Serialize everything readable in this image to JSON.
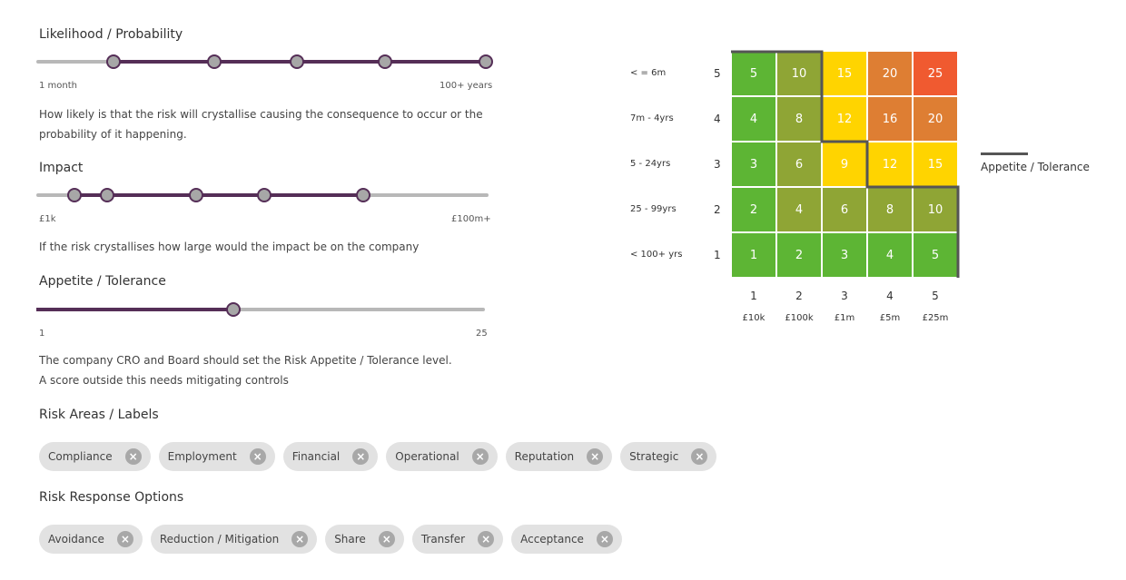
{
  "likelihood": {
    "title": "Likelihood / Probability",
    "min_label": "1 month",
    "max_label": "100+ years",
    "handle_values": [
      0.17,
      0.394,
      0.576,
      0.772,
      0.994
    ],
    "description": "How likely is that the risk will crystallise causing the consequence to occur or the probability of it happening."
  },
  "impact": {
    "title": "Impact",
    "min_label": "£1k",
    "max_label": "£100m+",
    "handle_values": [
      0.084,
      0.156,
      0.353,
      0.504,
      0.723
    ],
    "description": "If the risk crystallises how large would the impact be on the company"
  },
  "appetite": {
    "title": "Appetite / Tolerance",
    "min_label": "1",
    "max_label": "25",
    "handle_value": 0.44,
    "description_line1": "The company CRO and Board should set the Risk Appetite / Tolerance level.",
    "description_line2": "A score outside this needs mitigating controls"
  },
  "risk_areas": {
    "title": "Risk Areas / Labels",
    "chips": [
      "Compliance",
      "Employment",
      "Financial",
      "Operational",
      "Reputation",
      "Strategic"
    ]
  },
  "risk_responses": {
    "title": "Risk Response Options",
    "chips": [
      "Avoidance",
      "Reduction / Mitigation",
      "Share",
      "Transfer",
      "Acceptance"
    ]
  },
  "matrix": {
    "rows": [
      {
        "label": "< = 6m",
        "num": "5",
        "cells": [
          "5",
          "10",
          "15",
          "20",
          "25"
        ],
        "colors": [
          "#5db534",
          "#8fa535",
          "#ffd400",
          "#de7e33",
          "#f05a30"
        ]
      },
      {
        "label": "7m - 4yrs",
        "num": "4",
        "cells": [
          "4",
          "8",
          "12",
          "16",
          "20"
        ],
        "colors": [
          "#5db534",
          "#8fa535",
          "#ffd400",
          "#de7e33",
          "#de7e33"
        ]
      },
      {
        "label": "5 - 24yrs",
        "num": "3",
        "cells": [
          "3",
          "6",
          "9",
          "12",
          "15"
        ],
        "colors": [
          "#5db534",
          "#8fa535",
          "#ffd400",
          "#ffd400",
          "#ffd400"
        ]
      },
      {
        "label": "25 - 99yrs",
        "num": "2",
        "cells": [
          "2",
          "4",
          "6",
          "8",
          "10"
        ],
        "colors": [
          "#5db534",
          "#8fa535",
          "#8fa535",
          "#8fa535",
          "#8fa535"
        ]
      },
      {
        "label": "< 100+ yrs",
        "num": "1",
        "cells": [
          "1",
          "2",
          "3",
          "4",
          "5"
        ],
        "colors": [
          "#5db534",
          "#5db534",
          "#5db534",
          "#5db534",
          "#5db534"
        ]
      }
    ],
    "columns": [
      {
        "num": "1",
        "value": "£10k"
      },
      {
        "num": "2",
        "value": "£100k"
      },
      {
        "num": "3",
        "value": "£1m"
      },
      {
        "num": "4",
        "value": "£5m"
      },
      {
        "num": "5",
        "value": "£25m"
      }
    ],
    "legend_label": "Appetite / Tolerance",
    "tolerance_color": "#555555"
  },
  "colors": {
    "accent": "#552e57",
    "track": "#b8b8b8",
    "handle": "#a7a7a7",
    "chip_bg": "#e2e2e2",
    "chip_close": "#a8a8a8"
  }
}
